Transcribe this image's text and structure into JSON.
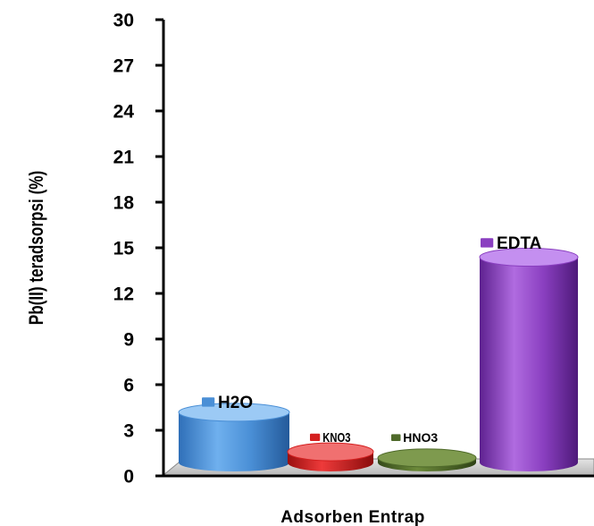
{
  "chart_data": {
    "type": "bar",
    "style": "3d-cylinder",
    "categories": [
      "H2O",
      "KNO3",
      "HNO3",
      "EDTA"
    ],
    "values": [
      3.3,
      0.7,
      0.3,
      13.5
    ],
    "xlabel": "Adsorben Entrap",
    "ylabel": "Pb(II) teradsorpsi (%)",
    "ylim": [
      0,
      30
    ],
    "yticks": [
      "0",
      "3",
      "6",
      "9",
      "12",
      "15",
      "18",
      "21",
      "24",
      "27",
      "30"
    ],
    "grid": false,
    "colors": {
      "H2O": "#4a8fd6",
      "KNO3": "#d42020",
      "HNO3": "#4f6a2a",
      "EDTA": "#8a3fc0",
      "floor": "#c8c8c8",
      "axis": "#000000"
    }
  }
}
